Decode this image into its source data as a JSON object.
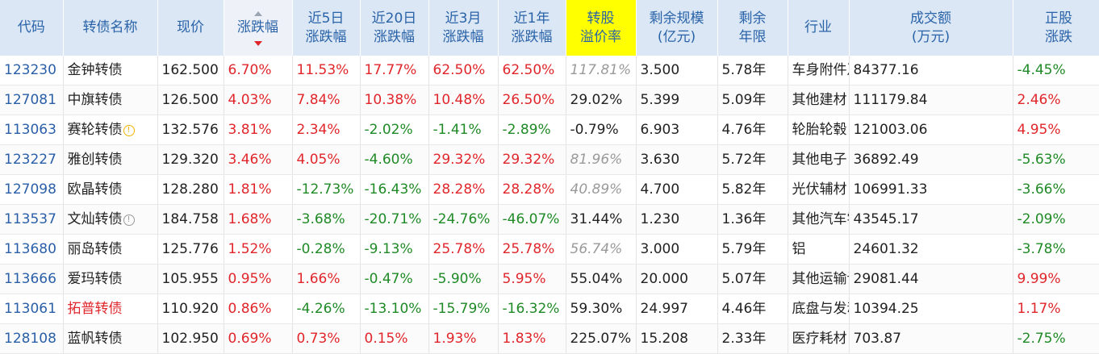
{
  "headers": {
    "code": "代码",
    "name": "转债名称",
    "price": "现价",
    "change": "涨跌幅",
    "chg5_l1": "近5日",
    "chg5_l2": "涨跌幅",
    "chg20_l1": "近20日",
    "chg20_l2": "涨跌幅",
    "chg3m_l1": "近3月",
    "chg3m_l2": "涨跌幅",
    "chg1y_l1": "近1年",
    "chg1y_l2": "涨跌幅",
    "premium_l1": "转股",
    "premium_l2": "溢价率",
    "scale_l1": "剩余规模",
    "scale_l2": "(亿元)",
    "term_l1": "剩余",
    "term_l2": "年限",
    "industry": "行业",
    "volume_l1": "成交额",
    "volume_l2": "(万元)",
    "stock_l1": "正股",
    "stock_l2": "涨跌"
  },
  "rows": [
    {
      "code": "123230",
      "name": "金钟转债",
      "warn": "",
      "price": "162.500",
      "chg": "6.70%",
      "chg5": "11.53%",
      "chg20": "17.77%",
      "chg3m": "62.50%",
      "chg1y": "62.50%",
      "premium": "117.81%",
      "premium_gray": true,
      "scale": "3.500",
      "term": "5.78年",
      "industry": "车身附件及饰件",
      "volume": "84377.16",
      "stock": "-4.45%"
    },
    {
      "code": "127081",
      "name": "中旗转债",
      "warn": "",
      "price": "126.500",
      "chg": "4.03%",
      "chg5": "7.84%",
      "chg20": "10.38%",
      "chg3m": "10.48%",
      "chg1y": "26.50%",
      "premium": "29.02%",
      "premium_gray": false,
      "scale": "5.399",
      "term": "5.09年",
      "industry": "其他建材",
      "volume": "111179.84",
      "stock": "2.46%"
    },
    {
      "code": "113063",
      "name": "赛轮转债",
      "warn": "yellow",
      "price": "132.576",
      "chg": "3.81%",
      "chg5": "2.34%",
      "chg20": "-2.02%",
      "chg3m": "-1.41%",
      "chg1y": "-2.89%",
      "premium": "-0.79%",
      "premium_gray": false,
      "scale": "6.903",
      "term": "4.76年",
      "industry": "轮胎轮毂",
      "volume": "121003.06",
      "stock": "4.95%"
    },
    {
      "code": "123227",
      "name": "雅创转债",
      "warn": "",
      "price": "129.320",
      "chg": "3.46%",
      "chg5": "4.05%",
      "chg20": "-4.60%",
      "chg3m": "29.32%",
      "chg1y": "29.32%",
      "premium": "81.96%",
      "premium_gray": true,
      "scale": "3.630",
      "term": "5.72年",
      "industry": "其他电子",
      "volume": "36892.49",
      "stock": "-5.63%"
    },
    {
      "code": "127098",
      "name": "欧晶转债",
      "warn": "",
      "price": "128.280",
      "chg": "1.81%",
      "chg5": "-12.73%",
      "chg20": "-16.43%",
      "chg3m": "28.28%",
      "chg1y": "28.28%",
      "premium": "40.89%",
      "premium_gray": true,
      "scale": "4.700",
      "term": "5.82年",
      "industry": "光伏辅材",
      "volume": "106991.33",
      "stock": "-3.66%"
    },
    {
      "code": "113537",
      "name": "文灿转债",
      "warn": "gray",
      "price": "184.758",
      "chg": "1.68%",
      "chg5": "-3.68%",
      "chg20": "-20.71%",
      "chg3m": "-24.76%",
      "chg1y": "-46.07%",
      "premium": "31.44%",
      "premium_gray": false,
      "scale": "1.230",
      "term": "1.36年",
      "industry": "其他汽车零部件",
      "volume": "43545.17",
      "stock": "-2.09%"
    },
    {
      "code": "113680",
      "name": "丽岛转债",
      "warn": "",
      "price": "125.776",
      "chg": "1.52%",
      "chg5": "-0.28%",
      "chg20": "-9.13%",
      "chg3m": "25.78%",
      "chg1y": "25.78%",
      "premium": "56.74%",
      "premium_gray": true,
      "scale": "3.000",
      "term": "5.79年",
      "industry": "铝",
      "volume": "24601.32",
      "stock": "-3.78%"
    },
    {
      "code": "113666",
      "name": "爱玛转债",
      "warn": "",
      "price": "105.955",
      "chg": "0.95%",
      "chg5": "1.66%",
      "chg20": "-0.47%",
      "chg3m": "-5.90%",
      "chg1y": "5.95%",
      "premium": "55.04%",
      "premium_gray": false,
      "scale": "20.000",
      "term": "5.07年",
      "industry": "其他运输设备",
      "volume": "29081.44",
      "stock": "9.99%"
    },
    {
      "code": "113061",
      "name": "拓普转债",
      "name_red": true,
      "warn": "",
      "price": "110.920",
      "chg": "0.86%",
      "chg5": "-4.26%",
      "chg20": "-13.10%",
      "chg3m": "-15.79%",
      "chg1y": "-16.32%",
      "premium": "59.30%",
      "premium_gray": false,
      "scale": "24.997",
      "term": "4.46年",
      "industry": "底盘与发动机系统",
      "volume": "10394.25",
      "stock": "1.17%"
    },
    {
      "code": "128108",
      "name": "蓝帆转债",
      "warn": "",
      "price": "102.950",
      "chg": "0.69%",
      "chg5": "0.73%",
      "chg20": "0.15%",
      "chg3m": "1.93%",
      "chg1y": "1.83%",
      "premium": "225.07%",
      "premium_gray": false,
      "scale": "15.208",
      "term": "2.33年",
      "industry": "医疗耗材",
      "volume": "703.87",
      "stock": "-2.75%"
    }
  ],
  "warn_icons": {
    "yellow": "warning-circle-yellow-icon",
    "gray": "warning-circle-gray-icon"
  },
  "colors": {
    "up": "#e0262b",
    "down": "#1f8a26",
    "header_bg": "#dbe7f5",
    "highlight": "#ffff00",
    "code": "#2a5fa8"
  }
}
